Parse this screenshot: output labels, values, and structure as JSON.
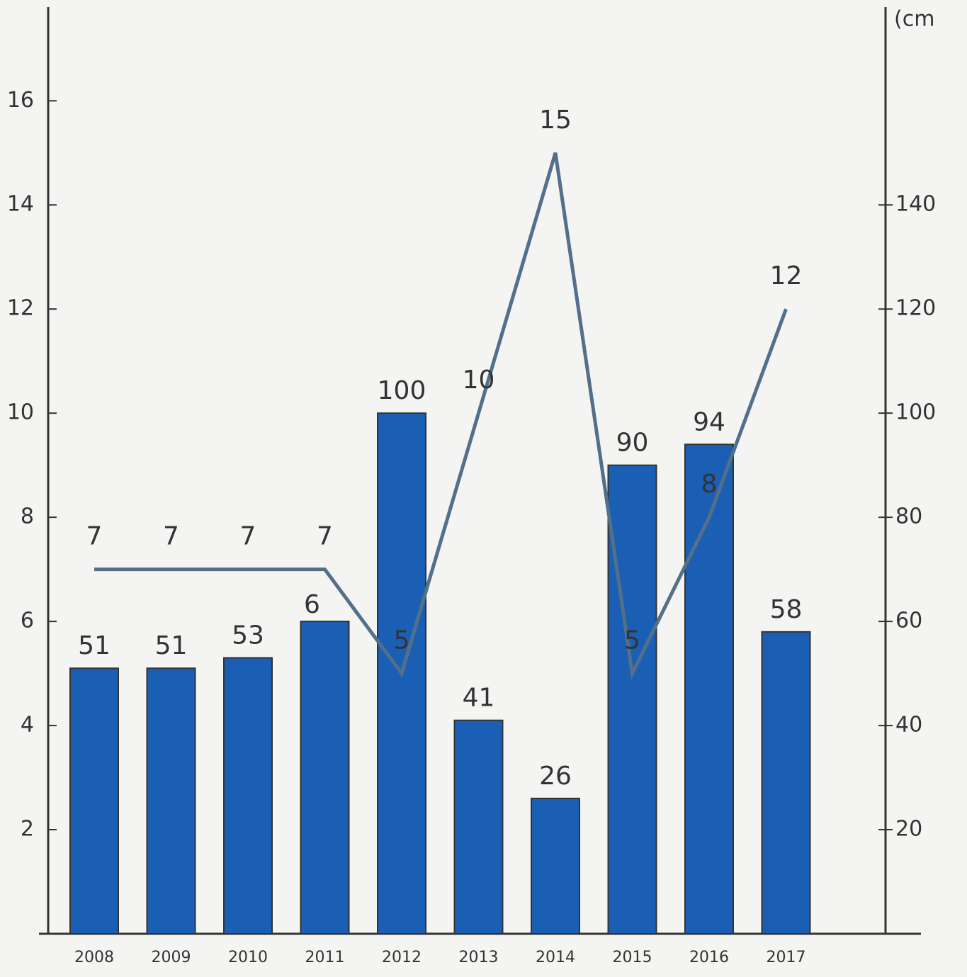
{
  "chart_data": {
    "type": "bar-line",
    "y2_label": "(cm",
    "categories": [
      "2008",
      "2009",
      "2010",
      "2011",
      "2012",
      "2013",
      "2014",
      "2015",
      "2016",
      "2017"
    ],
    "series": [
      {
        "type": "bar",
        "axis": "y2",
        "color": "#1a5fb4",
        "values": [
          51,
          51,
          53,
          60,
          100,
          41,
          26,
          90,
          94,
          58
        ],
        "value_labels": [
          "51",
          "51",
          "53",
          null,
          "100",
          "41",
          "26",
          "90",
          "94",
          "58"
        ]
      },
      {
        "type": "line",
        "axis": "y",
        "color": "#52708a",
        "values": [
          7,
          7,
          7,
          7,
          5,
          10,
          15,
          5,
          8,
          12
        ]
      }
    ],
    "annotations": [
      {
        "text": "6"
      }
    ],
    "ylim": [
      0,
      17.8
    ],
    "yticks": [
      2,
      4,
      6,
      8,
      10,
      12,
      14,
      16
    ],
    "y2lim": [
      0,
      178
    ],
    "y2ticks": [
      20,
      40,
      60,
      80,
      100,
      120,
      140
    ]
  }
}
